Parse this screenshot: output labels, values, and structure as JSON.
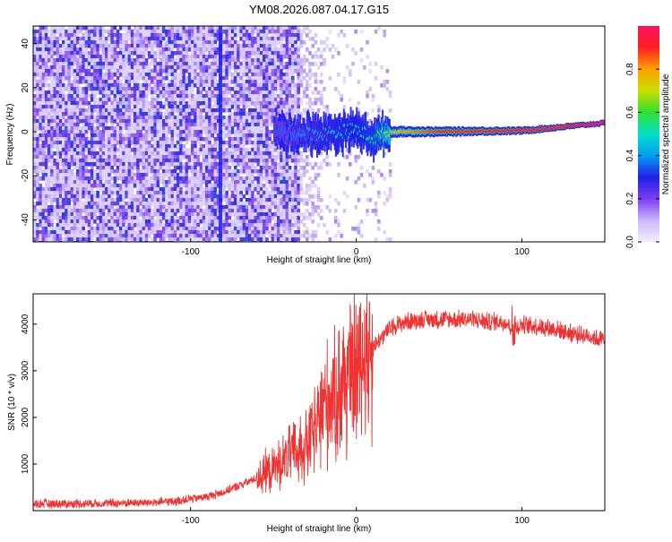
{
  "figure_title": "YM08.2026.087.04.17.G15",
  "chart_data": [
    {
      "type": "heatmap",
      "xlabel": "Height of straight line (km)",
      "ylabel": "Frequency (Hz)",
      "xlim": [
        -195,
        150
      ],
      "ylim": [
        -50,
        48
      ],
      "xticks": [
        -100,
        0,
        100
      ],
      "yticks": [
        -40,
        -20,
        0,
        20,
        40
      ],
      "colorbar": {
        "label": "Normalized spectral amplitude",
        "range": [
          0,
          1
        ],
        "ticks": [
          0.0,
          0.2,
          0.4,
          0.6,
          0.8
        ],
        "colors": [
          "#f2eefe",
          "#c9b8f6",
          "#7c3cf0",
          "#2020e6",
          "#00a0f0",
          "#00e0c8",
          "#30e030",
          "#c8e000",
          "#ffa000",
          "#ff2020",
          "#ff1060"
        ]
      },
      "features": {
        "noise_region_x": [
          -195,
          -20
        ],
        "vertical_stripe_x": -82,
        "signal_line": [
          {
            "x": -50,
            "freq": 0,
            "amplitude": 0.35
          },
          {
            "x": -20,
            "freq": -1,
            "amplitude": 0.45
          },
          {
            "x": 0,
            "freq": 1,
            "amplitude": 0.5
          },
          {
            "x": 10,
            "freq": -3,
            "amplitude": 0.55
          },
          {
            "x": 20,
            "freq": 0,
            "amplitude": 0.75
          },
          {
            "x": 50,
            "freq": 0,
            "amplitude": 0.9
          },
          {
            "x": 100,
            "freq": 0.5,
            "amplitude": 0.95
          },
          {
            "x": 150,
            "freq": 4,
            "amplitude": 1.0
          }
        ]
      }
    },
    {
      "type": "line",
      "xlabel": "Height of straight line (km)",
      "ylabel": "SNR (10 * v/v)",
      "xlim": [
        -195,
        150
      ],
      "ylim": [
        0,
        4650
      ],
      "xticks": [
        -100,
        0,
        100
      ],
      "yticks": [
        1000,
        2000,
        3000,
        4000
      ],
      "line_color": "#f03232",
      "series": [
        {
          "x": [
            -195,
            -170,
            -150,
            -130,
            -120,
            -110,
            -100,
            -90,
            -80,
            -70,
            -60,
            -50,
            -40,
            -30,
            -25,
            -20,
            -15,
            -10,
            -5,
            0,
            5,
            10,
            15,
            20,
            25,
            30,
            40,
            50,
            60,
            70,
            80,
            90,
            95,
            100,
            110,
            120,
            130,
            140,
            150
          ],
          "values": [
            150,
            150,
            160,
            170,
            180,
            200,
            250,
            300,
            400,
            550,
            700,
            900,
            1200,
            1400,
            1700,
            2200,
            2500,
            2600,
            2900,
            3000,
            3400,
            3500,
            3700,
            3900,
            4000,
            4050,
            4100,
            4100,
            4100,
            4100,
            4050,
            4050,
            3900,
            4000,
            3950,
            3900,
            3800,
            3750,
            3650
          ]
        }
      ]
    }
  ]
}
